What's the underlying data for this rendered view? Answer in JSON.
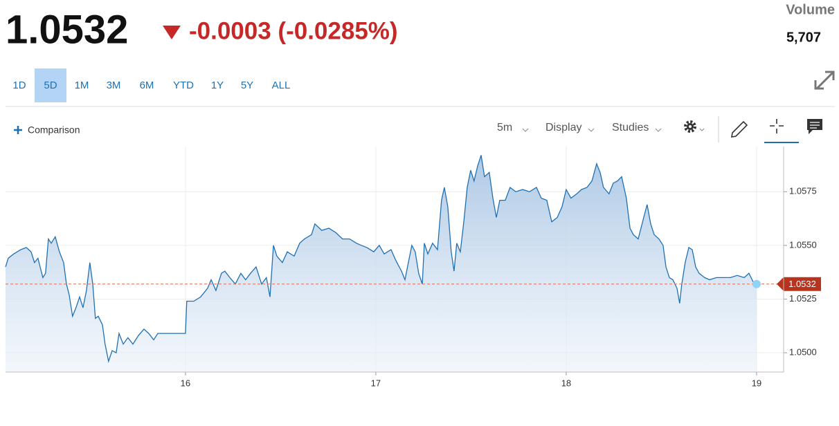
{
  "header": {
    "change": "-0.0003 (-0.0285%)",
    "volume_label": "Volume",
    "volume": "5,707"
  },
  "ranges": {
    "items": [
      "1D",
      "5D",
      "1M",
      "3M",
      "6M",
      "YTD",
      "1Y",
      "5Y",
      "ALL"
    ],
    "selected": 1
  },
  "toolbar": {
    "comparison": "Comparison",
    "interval": "5m",
    "display": "Display",
    "studies": "Studies"
  },
  "chart_data": {
    "type": "line",
    "color": "#1f6fb2",
    "last_value": 1.0532,
    "xlim": [
      15.055,
      19.142
    ],
    "ylim": [
      1.0491,
      1.0596
    ],
    "xticks": [
      16,
      17,
      18,
      19
    ],
    "yticks": [
      {
        "value": 1.05,
        "label": "1.0500"
      },
      1.0525,
      {
        "value": 1.055,
        "label": "1.0550"
      },
      1.0575
    ],
    "grid": true,
    "x": [
      15.055,
      15.069,
      15.098,
      15.135,
      15.164,
      15.189,
      15.207,
      15.225,
      15.251,
      15.265,
      15.28,
      15.295,
      15.316,
      15.338,
      15.36,
      15.375,
      15.389,
      15.407,
      15.425,
      15.444,
      15.462,
      15.48,
      15.498,
      15.513,
      15.527,
      15.542,
      15.564,
      15.578,
      15.596,
      15.615,
      15.636,
      15.651,
      15.673,
      15.698,
      15.724,
      15.753,
      15.782,
      15.807,
      15.833,
      15.855,
      16.0,
      16.007,
      16.044,
      16.08,
      16.116,
      16.135,
      16.16,
      16.189,
      16.207,
      16.233,
      16.262,
      16.291,
      16.316,
      16.342,
      16.371,
      16.4,
      16.425,
      16.444,
      16.462,
      16.48,
      16.509,
      16.535,
      16.571,
      16.6,
      16.625,
      16.662,
      16.68,
      16.716,
      16.753,
      16.789,
      16.825,
      16.862,
      16.898,
      16.924,
      16.953,
      16.989,
      17.018,
      17.044,
      17.08,
      17.105,
      17.135,
      17.153,
      17.171,
      17.189,
      17.207,
      17.225,
      17.244,
      17.255,
      17.273,
      17.298,
      17.324,
      17.345,
      17.36,
      17.378,
      17.396,
      17.411,
      17.425,
      17.444,
      17.462,
      17.48,
      17.498,
      17.516,
      17.535,
      17.553,
      17.571,
      17.596,
      17.615,
      17.633,
      17.651,
      17.68,
      17.705,
      17.735,
      17.771,
      17.807,
      17.844,
      17.869,
      17.898,
      17.924,
      17.953,
      17.978,
      18.0,
      18.025,
      18.055,
      18.08,
      18.109,
      18.135,
      18.16,
      18.178,
      18.196,
      18.225,
      18.247,
      18.269,
      18.291,
      18.316,
      18.335,
      18.353,
      18.378,
      18.407,
      18.425,
      18.444,
      18.462,
      18.487,
      18.509,
      18.524,
      18.542,
      18.56,
      18.582,
      18.596,
      18.607,
      18.625,
      18.644,
      18.662,
      18.68,
      18.698,
      18.727,
      18.753,
      18.789,
      18.825,
      18.862,
      18.898,
      18.935,
      18.96,
      18.982,
      19.0
    ],
    "values": [
      1.054,
      1.0544,
      1.0546,
      1.0548,
      1.0549,
      1.0547,
      1.0542,
      1.0544,
      1.0535,
      1.0537,
      1.0553,
      1.0551,
      1.0554,
      1.0547,
      1.0542,
      1.0532,
      1.0527,
      1.0517,
      1.0521,
      1.0526,
      1.0521,
      1.0529,
      1.0542,
      1.0532,
      1.0516,
      1.0517,
      1.0513,
      1.0504,
      1.0496,
      1.0501,
      1.05,
      1.0509,
      1.0504,
      1.0507,
      1.0504,
      1.0508,
      1.0511,
      1.0509,
      1.0506,
      1.0509,
      1.0509,
      1.0524,
      1.0524,
      1.0526,
      1.053,
      1.0534,
      1.0529,
      1.0537,
      1.0538,
      1.0535,
      1.0532,
      1.0537,
      1.0534,
      1.0537,
      1.054,
      1.0532,
      1.0535,
      1.0526,
      1.055,
      1.0545,
      1.0542,
      1.0547,
      1.0545,
      1.0551,
      1.0553,
      1.0555,
      1.056,
      1.0557,
      1.0558,
      1.0556,
      1.0553,
      1.0553,
      1.0551,
      1.055,
      1.0549,
      1.0547,
      1.055,
      1.0546,
      1.0548,
      1.0543,
      1.0538,
      1.0534,
      1.0542,
      1.055,
      1.0547,
      1.0537,
      1.0532,
      1.0551,
      1.0546,
      1.0551,
      1.0548,
      1.0571,
      1.0577,
      1.0568,
      1.0547,
      1.0538,
      1.0551,
      1.0547,
      1.0561,
      1.0577,
      1.0585,
      1.058,
      1.0587,
      1.0592,
      1.0582,
      1.0584,
      1.0572,
      1.0563,
      1.0571,
      1.0571,
      1.0577,
      1.0575,
      1.0576,
      1.0575,
      1.0577,
      1.0572,
      1.0571,
      1.0561,
      1.0563,
      1.0568,
      1.0576,
      1.0572,
      1.0574,
      1.0576,
      1.0577,
      1.058,
      1.0588,
      1.0584,
      1.0577,
      1.0574,
      1.0579,
      1.058,
      1.0582,
      1.0572,
      1.0558,
      1.0555,
      1.0553,
      1.0563,
      1.0569,
      1.056,
      1.0555,
      1.0553,
      1.055,
      1.054,
      1.0535,
      1.0534,
      1.053,
      1.0523,
      1.0532,
      1.0542,
      1.0549,
      1.0548,
      1.054,
      1.0537,
      1.0535,
      1.0534,
      1.0535,
      1.0535,
      1.0535,
      1.0536,
      1.0535,
      1.0537,
      1.0533,
      1.0532
    ]
  }
}
